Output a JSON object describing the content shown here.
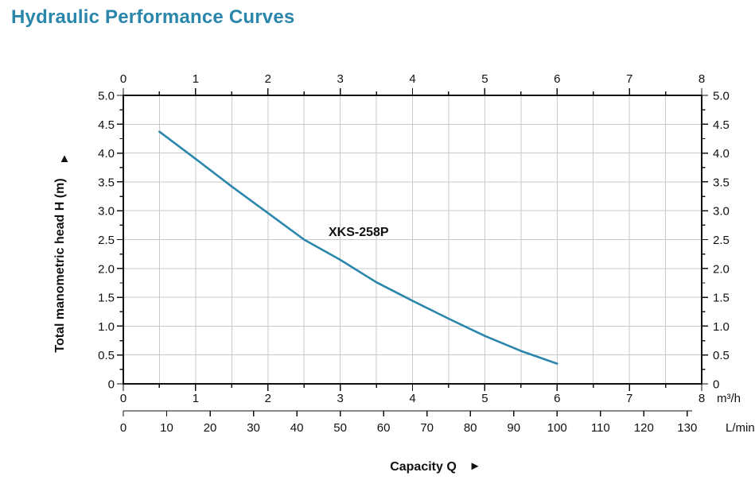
{
  "page": {
    "title": "Hydraulic Performance Curves",
    "accent_color": "#2a86ab"
  },
  "chart_data": {
    "type": "line",
    "title": "Hydraulic Performance Curves",
    "model": "XKS-258P",
    "xlabel": "Capacity Q",
    "xlabel_arrow": "►",
    "ylabel": "Total manometric head H (m)",
    "ylabel_arrow": "▲",
    "grid": true,
    "legend": "none",
    "curve_color": "#2b86ab",
    "x_axis_m3h": {
      "unit": "m³/h",
      "range": [
        0,
        8
      ],
      "tick_labels": [
        "0",
        "1",
        "2",
        "3",
        "4",
        "5",
        "6",
        "7",
        "8"
      ],
      "minor_tick_step": 0.5
    },
    "x_axis_lmin": {
      "unit": "L/min",
      "range": [
        0,
        130
      ],
      "tick_labels": [
        "0",
        "10",
        "20",
        "30",
        "40",
        "50",
        "60",
        "70",
        "80",
        "90",
        "100",
        "110",
        "120",
        "130"
      ]
    },
    "y_axis": {
      "unit": "m",
      "range": [
        0,
        5
      ],
      "tick_labels_top_to_bottom": [
        "5.0",
        "4.5",
        "4.0",
        "3.5",
        "3.0",
        "2.5",
        "2.0",
        "1.5",
        "1.0",
        "0.5",
        "0"
      ],
      "minor_tick_step": 0.25
    },
    "series": [
      {
        "name": "XKS-258P",
        "x_m3h": [
          0.5,
          1.0,
          1.5,
          2.0,
          2.5,
          3.0,
          3.5,
          4.0,
          4.5,
          5.0,
          5.5,
          6.0
        ],
        "head_m": [
          4.37,
          3.9,
          3.42,
          2.96,
          2.5,
          2.15,
          1.76,
          1.44,
          1.13,
          0.83,
          0.57,
          0.35
        ]
      }
    ]
  }
}
